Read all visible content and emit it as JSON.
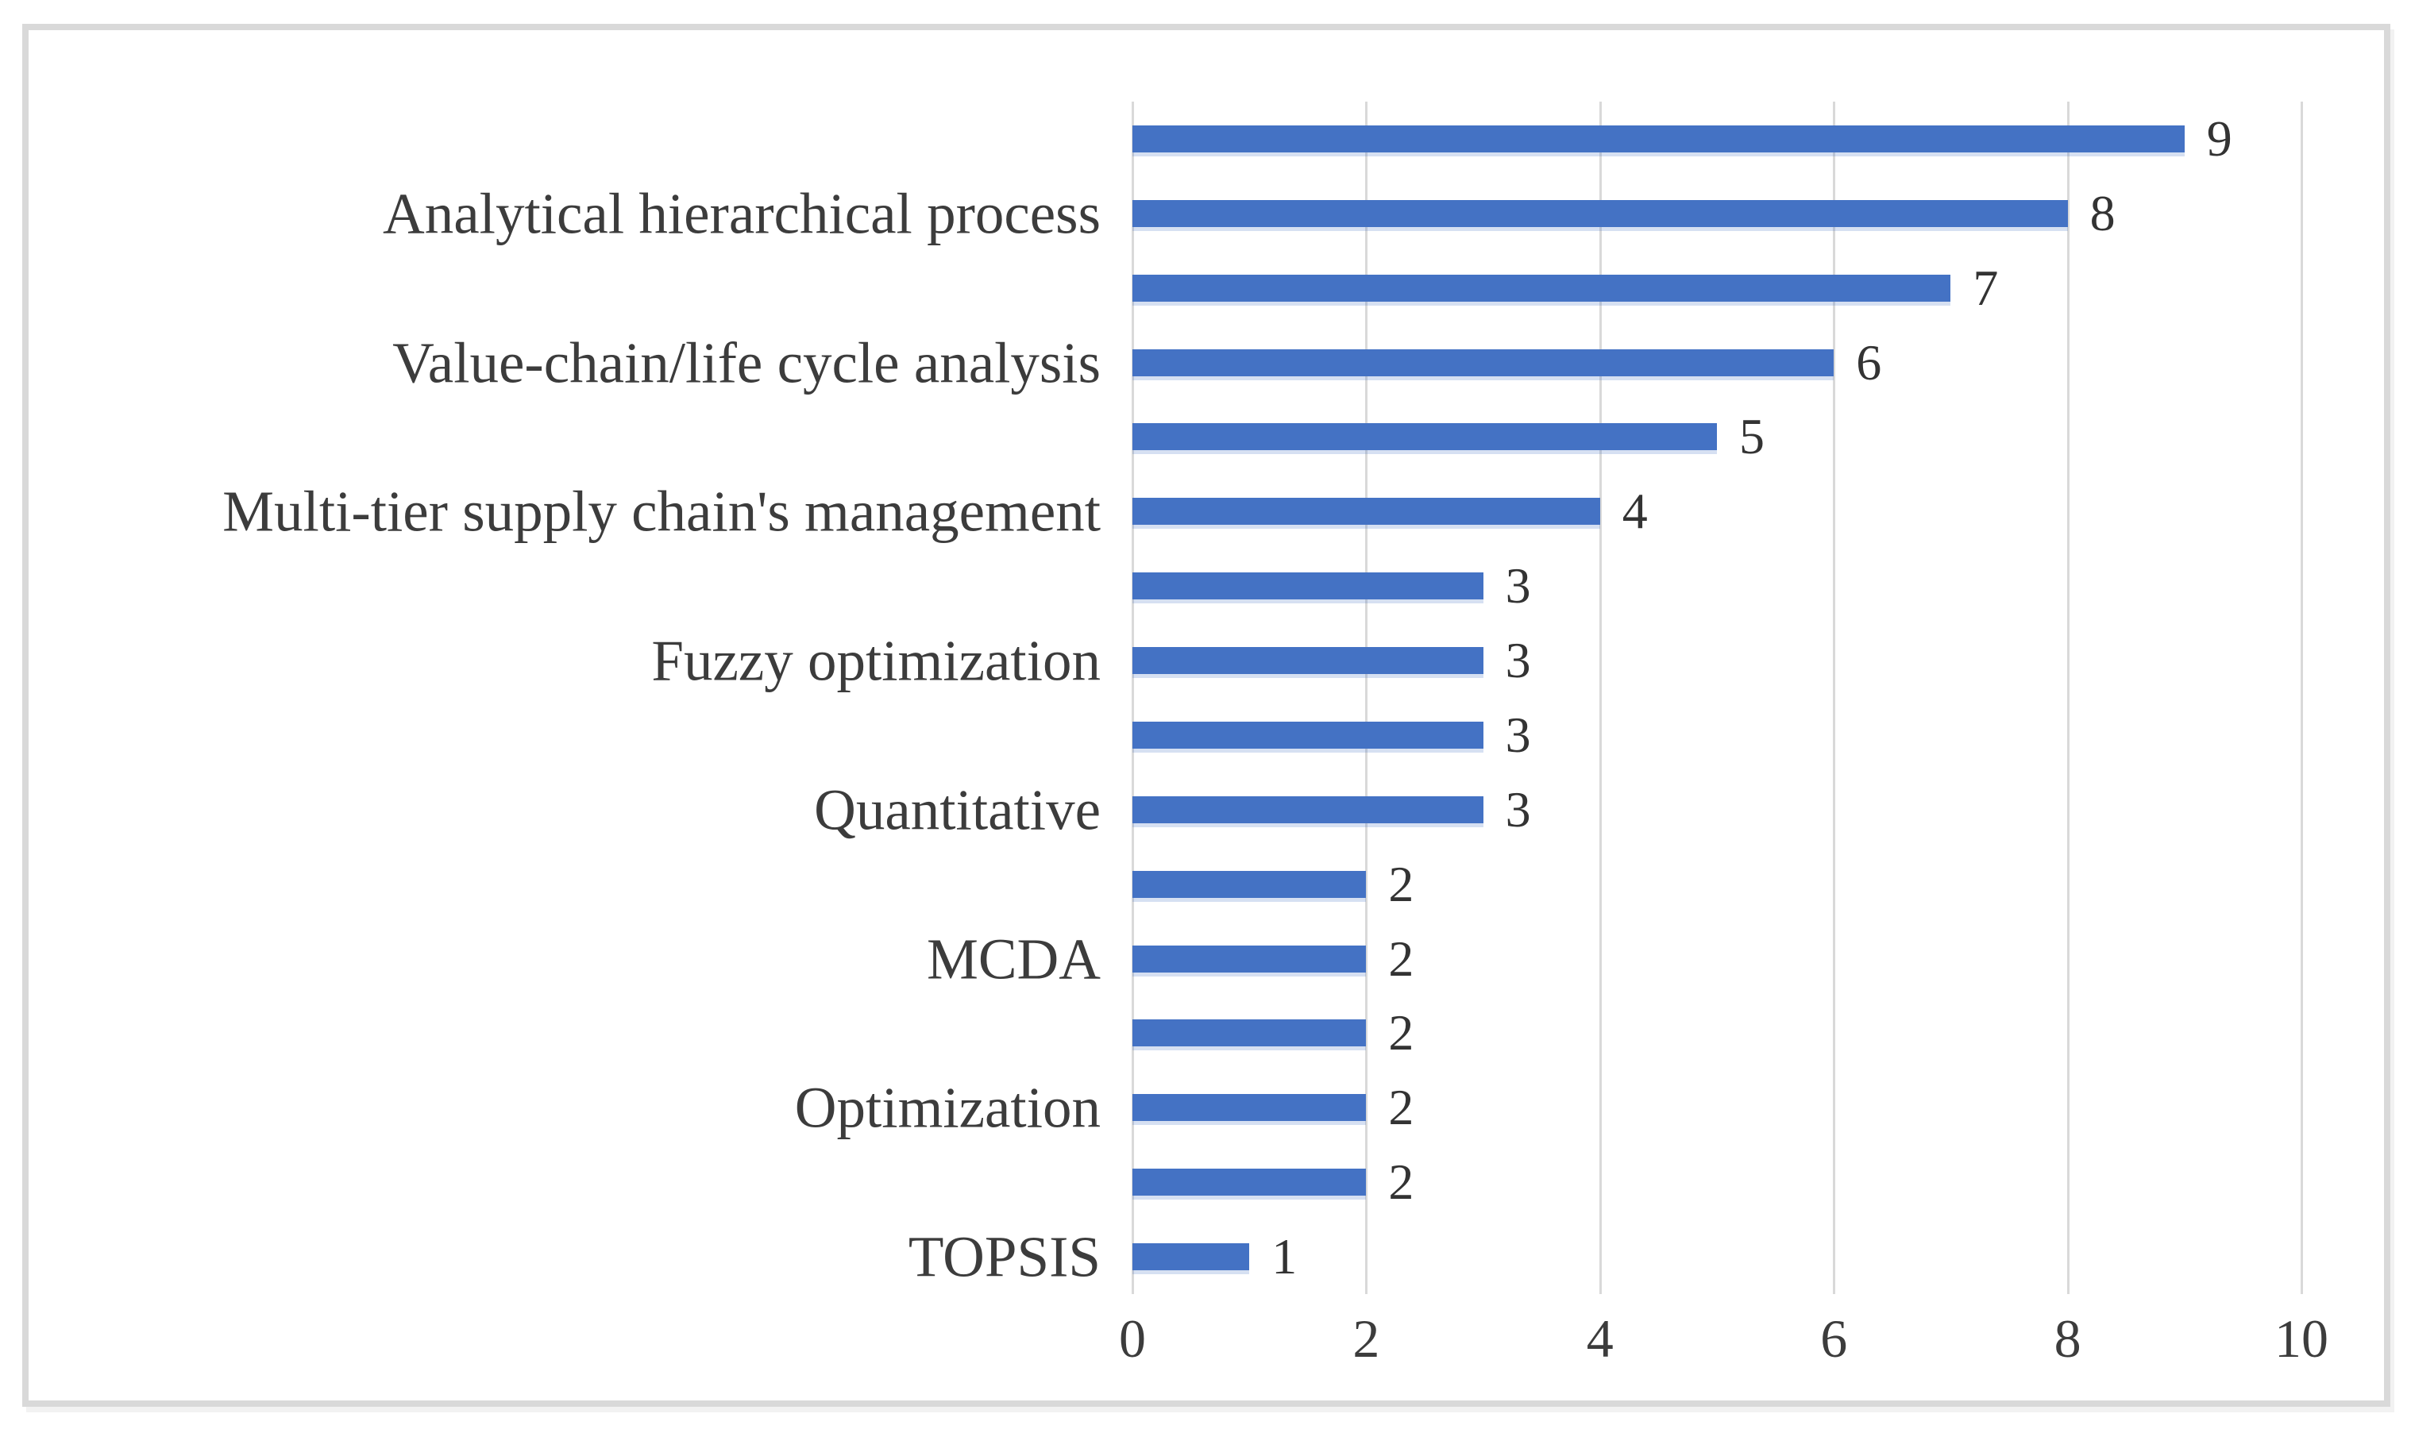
{
  "figure": {
    "background": "#ffffff",
    "border_color": "#d9d9d9"
  },
  "chart_data": {
    "type": "bar",
    "orientation": "horizontal",
    "title": "",
    "xlabel": "",
    "ylabel": "",
    "legend": "none",
    "grid": true,
    "gridline_color": "#d9d9d9",
    "bar_color": "#4472c4",
    "text_color": "#3c3c3c",
    "xlim": [
      0,
      10
    ],
    "x_ticks": [
      0,
      2,
      4,
      6,
      8,
      10
    ],
    "x_tick_labels": [
      "0",
      "2",
      "4",
      "6",
      "8",
      "10"
    ],
    "data_labels_shown": true,
    "categories": [
      "",
      "Analytical hierarchical process",
      "",
      "Value-chain/life cycle analysis",
      "",
      "Multi-tier supply chain's management",
      "",
      "Fuzzy optimization",
      "",
      "Quantitative",
      "",
      "MCDA",
      "",
      "Optimization",
      "",
      "TOPSIS"
    ],
    "values": [
      9,
      8,
      7,
      6,
      5,
      4,
      3,
      3,
      3,
      3,
      2,
      2,
      2,
      2,
      2,
      1
    ]
  }
}
